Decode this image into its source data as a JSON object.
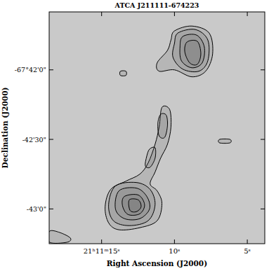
{
  "chart_data": {
    "type": "contour",
    "title": "ATCA J211111-674223",
    "x_label": "Right Ascension (J2000)",
    "y_label": "Declination (J2000)",
    "xlim": [
      18.6,
      3.8
    ],
    "ylim": [
      -243795,
      -243695
    ],
    "xticks": [
      {
        "value": 15,
        "label": "21ʰ11ᵐ15ˢ"
      },
      {
        "value": 10,
        "label": "10ˢ"
      },
      {
        "value": 5,
        "label": "5ˢ"
      }
    ],
    "yticks": [
      {
        "value": -243720,
        "label": "-67°42'0\""
      },
      {
        "value": -243750,
        "label": "-42'30\""
      },
      {
        "value": -243780,
        "label": "-43'0\""
      }
    ],
    "color": "#000000",
    "contours": [
      [
        [
          10.86,
          -243736.2
        ],
        [
          10.33,
          -243737.1
        ],
        [
          10.24,
          -243744.6
        ],
        [
          10.48,
          -243752.1
        ],
        [
          10.95,
          -243758.1
        ],
        [
          11.33,
          -243764.1
        ],
        [
          11.67,
          -243769.2
        ],
        [
          11.19,
          -243772.2
        ],
        [
          10.86,
          -243777.6
        ],
        [
          11.19,
          -243785.1
        ],
        [
          12.38,
          -243788.1
        ],
        [
          13.81,
          -243789
        ],
        [
          14.52,
          -243786
        ],
        [
          14.76,
          -243779.1
        ],
        [
          14.38,
          -243771.6
        ],
        [
          13.33,
          -243768
        ],
        [
          12.38,
          -243765
        ],
        [
          11.81,
          -243760.2
        ],
        [
          11.33,
          -243752.1
        ],
        [
          11.05,
          -243744.6
        ]
      ],
      [
        [
          14.05,
          -243770.1
        ],
        [
          12.62,
          -243768.6
        ],
        [
          11.67,
          -243771.6
        ],
        [
          11.33,
          -243778.2
        ],
        [
          11.81,
          -243785.1
        ],
        [
          13.1,
          -243787.2
        ],
        [
          14.19,
          -243785.1
        ],
        [
          14.52,
          -243778.2
        ]
      ],
      [
        [
          13.81,
          -243772.2
        ],
        [
          12.62,
          -243771
        ],
        [
          11.9,
          -243774.6
        ],
        [
          11.71,
          -243780
        ],
        [
          12.38,
          -243784.2
        ],
        [
          13.43,
          -243784.2
        ],
        [
          14.05,
          -243780
        ]
      ],
      [
        [
          13.43,
          -243774.6
        ],
        [
          12.48,
          -243774
        ],
        [
          12.05,
          -243778.2
        ],
        [
          12.38,
          -243782.1
        ],
        [
          13.19,
          -243782.4
        ],
        [
          13.57,
          -243778.5
        ]
      ],
      [
        [
          13.1,
          -243776.1
        ],
        [
          12.48,
          -243776.1
        ],
        [
          12.29,
          -243779.1
        ],
        [
          12.62,
          -243781.2
        ],
        [
          13.05,
          -243780.6
        ]
      ],
      [
        [
          10.95,
          -243739.2
        ],
        [
          10.57,
          -243739.5
        ],
        [
          10.48,
          -243744
        ],
        [
          10.67,
          -243749.1
        ],
        [
          11.05,
          -243748.5
        ],
        [
          11.14,
          -243743.1
        ]
      ],
      [
        [
          11.71,
          -243754.2
        ],
        [
          11.33,
          -243753.6
        ],
        [
          11.33,
          -243758.1
        ],
        [
          11.67,
          -243762
        ],
        [
          12.0,
          -243761.4
        ],
        [
          11.9,
          -243757.2
        ]
      ],
      [
        [
          10.0,
          -243703.2
        ],
        [
          8.81,
          -243701.1
        ],
        [
          7.62,
          -243704.1
        ],
        [
          7.38,
          -243713.1
        ],
        [
          7.86,
          -243720.6
        ],
        [
          8.81,
          -243723
        ],
        [
          10.0,
          -243720
        ],
        [
          11.05,
          -243720.6
        ],
        [
          11.19,
          -243717
        ],
        [
          10.48,
          -243711.6
        ],
        [
          10.24,
          -243707.1
        ]
      ],
      [
        [
          9.76,
          -243704.1
        ],
        [
          8.57,
          -243702.6
        ],
        [
          7.71,
          -243707.1
        ],
        [
          7.71,
          -243716.1
        ],
        [
          8.33,
          -243720.6
        ],
        [
          9.43,
          -243719.7
        ],
        [
          10.1,
          -243714.6
        ],
        [
          10.0,
          -243708.6
        ]
      ],
      [
        [
          9.43,
          -243705.6
        ],
        [
          8.48,
          -243705
        ],
        [
          7.95,
          -243710.1
        ],
        [
          8.1,
          -243717
        ],
        [
          8.81,
          -243719.1
        ],
        [
          9.52,
          -243716.1
        ],
        [
          9.62,
          -243710.1
        ]
      ],
      [
        [
          9.14,
          -243708
        ],
        [
          8.43,
          -243707.7
        ],
        [
          8.19,
          -243713.1
        ],
        [
          8.43,
          -243717.6
        ],
        [
          8.95,
          -243717
        ],
        [
          9.29,
          -243712.2
        ]
      ],
      [
        [
          13.71,
          -243720.6
        ],
        [
          13.33,
          -243720.6
        ],
        [
          13.33,
          -243722.4
        ],
        [
          13.71,
          -243722.4
        ]
      ],
      [
        [
          6.9,
          -243750
        ],
        [
          6.19,
          -243750
        ],
        [
          6.19,
          -243751.5
        ],
        [
          6.9,
          -243751.5
        ]
      ],
      [
        [
          18.57,
          -243789.6
        ],
        [
          17.86,
          -243790.2
        ],
        [
          17.14,
          -243792.6
        ],
        [
          17.38,
          -243794.4
        ],
        [
          18.57,
          -243794.4
        ]
      ]
    ]
  }
}
